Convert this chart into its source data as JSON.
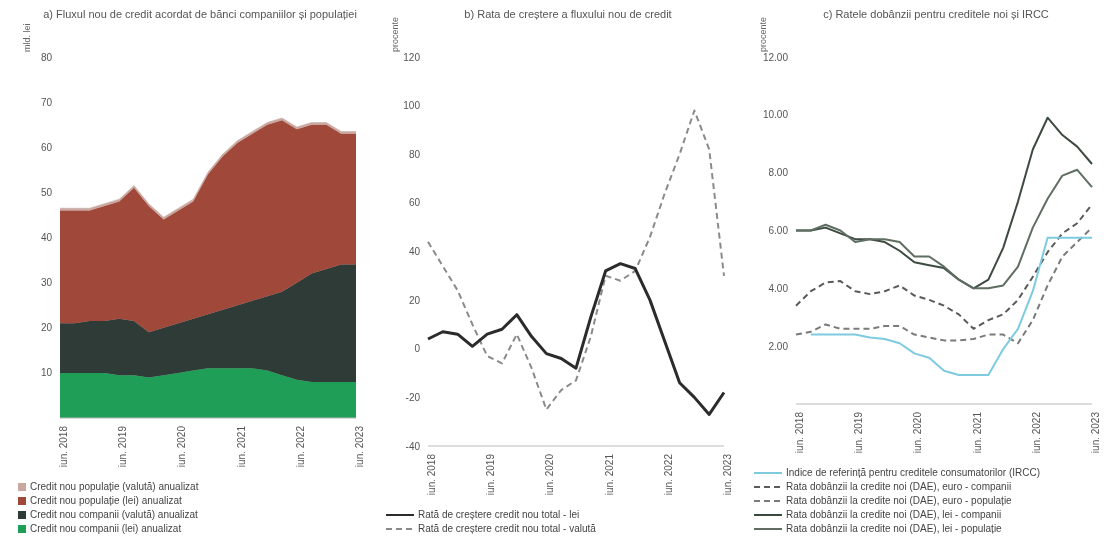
{
  "chart_data": [
    {
      "type": "area",
      "stacked": true,
      "title": "a) Fluxul nou de credit acordat de bănci companiilor și populației",
      "ylabel": "mld. lei",
      "categories": [
        "iun. 2018",
        null,
        null,
        null,
        "iun. 2019",
        null,
        null,
        null,
        "iun. 2020",
        null,
        null,
        null,
        "iun. 2021",
        null,
        null,
        null,
        "iun. 2022",
        null,
        null,
        null,
        "iun. 2023"
      ],
      "ylim": [
        0,
        80
      ],
      "yticks": [
        10,
        20,
        30,
        40,
        50,
        60,
        70,
        80
      ],
      "grid": false,
      "legend": "bottom",
      "series": [
        {
          "name": "Credit nou companii (lei) anualizat",
          "color": "#1f9e58",
          "values": [
            10,
            10,
            10,
            10,
            9.5,
            9.5,
            9,
            9.5,
            10,
            10.5,
            11,
            11,
            11,
            11,
            10.5,
            9.5,
            8.5,
            8,
            8,
            8,
            8
          ]
        },
        {
          "name": "Credit nou companii (valută) anualizat",
          "color": "#2e3b37",
          "values": [
            11,
            11,
            11.5,
            11.5,
            12.5,
            12,
            10,
            10.5,
            11,
            11.5,
            12,
            13,
            14,
            15,
            16.5,
            18.5,
            21.5,
            24,
            25,
            26,
            26
          ]
        },
        {
          "name": "Credit nou populație (lei) anualizat",
          "color": "#a0493a",
          "values": [
            25,
            25,
            24.5,
            25.5,
            26,
            29.5,
            28,
            24,
            25,
            26,
            31,
            34,
            36,
            37,
            38,
            38,
            34,
            33,
            32,
            29,
            29
          ]
        },
        {
          "name": "Credit nou populație (valută) anualizat",
          "color": "#c8a8a0",
          "values": [
            0.5,
            0.5,
            0.5,
            0.5,
            0.5,
            0.5,
            0.5,
            0.5,
            0.5,
            0.5,
            0.5,
            0.5,
            0.5,
            0.5,
            0.5,
            0.5,
            0.5,
            0.5,
            0.5,
            0.5,
            0.5
          ]
        }
      ]
    },
    {
      "type": "line",
      "title": "b) Rata de creștere a fluxului nou de credit",
      "ylabel": "procente",
      "categories": [
        "iun. 2018",
        null,
        null,
        null,
        "iun. 2019",
        null,
        null,
        null,
        "iun. 2020",
        null,
        null,
        null,
        "iun. 2021",
        null,
        null,
        null,
        "iun. 2022",
        null,
        null,
        null,
        "iun. 2023"
      ],
      "ylim": [
        -40,
        120
      ],
      "yticks": [
        -40,
        -20,
        0,
        20,
        40,
        60,
        80,
        100,
        120
      ],
      "grid": false,
      "legend": "bottom",
      "marker": "none",
      "series": [
        {
          "name": "Rată de creștere credit nou total - valută",
          "color": "#8a8a8a",
          "line_style": "dashed",
          "values": [
            44,
            34,
            24,
            10,
            -3,
            -6,
            6,
            -8,
            -25,
            -17,
            -13,
            5,
            30,
            28,
            32,
            46,
            64,
            80,
            98,
            82,
            30
          ]
        },
        {
          "name": "Rată de creștere credit nou total - lei",
          "color": "#2b2b2b",
          "line_style": "solid",
          "values": [
            4,
            7,
            6,
            1,
            6,
            8,
            14,
            5,
            -2,
            -4,
            -8,
            13,
            32,
            35,
            33,
            20,
            3,
            -14,
            -20,
            -27,
            -18
          ]
        }
      ]
    },
    {
      "type": "line",
      "title": "c) Ratele dobânzii pentru creditele noi și IRCC",
      "ylabel": "procente",
      "categories": [
        "iun. 2018",
        null,
        null,
        null,
        "iun. 2019",
        null,
        null,
        null,
        "iun. 2020",
        null,
        null,
        null,
        "iun. 2021",
        null,
        null,
        null,
        "iun. 2022",
        null,
        null,
        null,
        "iun. 2023"
      ],
      "ylim": [
        0,
        12
      ],
      "yticks": [
        {
          "value": 2,
          "label": "2.00"
        },
        {
          "value": 4,
          "label": "4.00"
        },
        {
          "value": 6,
          "label": "6.00"
        },
        {
          "value": 8,
          "label": "8.00"
        },
        {
          "value": 10,
          "label": "10.00"
        },
        {
          "value": 12,
          "label": "12.00"
        }
      ],
      "grid": false,
      "legend": "bottom",
      "marker": "none",
      "series": [
        {
          "name": "Rata dobânzii la credite noi (DAE), lei - companii",
          "color": "#3c4a40",
          "line_style": "solid",
          "values": [
            6.0,
            6.0,
            6.1,
            5.9,
            5.7,
            5.7,
            5.6,
            5.3,
            4.9,
            4.8,
            4.7,
            4.3,
            4.0,
            4.3,
            5.4,
            7.0,
            8.8,
            9.9,
            9.3,
            8.9,
            8.3
          ]
        },
        {
          "name": "Rata dobânzii la credite noi (DAE), lei - populație",
          "color": "#5e6e60",
          "line_style": "solid",
          "values": [
            6.0,
            6.0,
            6.2,
            6.0,
            5.6,
            5.7,
            5.7,
            5.6,
            5.1,
            5.1,
            4.75,
            4.3,
            4.0,
            4.0,
            4.1,
            4.75,
            6.1,
            7.1,
            7.9,
            8.1,
            7.5
          ]
        },
        {
          "name": "Rata dobânzii la credite noi (DAE), euro - companii",
          "color": "#5a5a5a",
          "line_style": "dashed",
          "values": [
            3.4,
            3.9,
            4.2,
            4.25,
            3.9,
            3.8,
            3.9,
            4.1,
            3.75,
            3.6,
            3.4,
            3.1,
            2.6,
            2.9,
            3.1,
            3.6,
            4.4,
            5.25,
            5.9,
            6.25,
            6.9
          ]
        },
        {
          "name": "Rata dobânzii la credite noi (DAE), euro - populație",
          "color": "#7a7a7a",
          "line_style": "dashed",
          "values": [
            2.4,
            2.5,
            2.75,
            2.6,
            2.6,
            2.6,
            2.7,
            2.7,
            2.4,
            2.3,
            2.2,
            2.2,
            2.25,
            2.4,
            2.4,
            2.1,
            2.9,
            4.1,
            5.1,
            5.6,
            6.1
          ]
        },
        {
          "name": "Indice de referință pentru creditele consumatorilor (IRCC)",
          "color": "#7ecbe0",
          "line_style": "solid",
          "values": [
            null,
            2.4,
            2.4,
            2.4,
            2.4,
            2.3,
            2.25,
            2.1,
            1.75,
            1.6,
            1.15,
            1.0,
            1.0,
            1.0,
            1.9,
            2.6,
            3.9,
            5.75,
            5.75,
            5.75,
            5.75
          ]
        }
      ]
    }
  ]
}
